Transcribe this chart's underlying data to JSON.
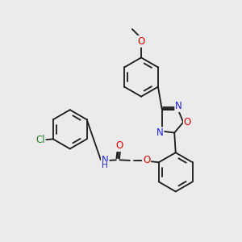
{
  "background_color": "#ebebeb",
  "bond_color": "#1a1a1a",
  "atom_colors": {
    "O": "#e00000",
    "N": "#2020e0",
    "Cl": "#208020",
    "C": "#1a1a1a"
  },
  "bond_width": 1.3,
  "aromatic_inner_ratio": 0.72,
  "font_size_atom": 8.5,
  "figsize": [
    3.0,
    3.0
  ],
  "dpi": 100
}
